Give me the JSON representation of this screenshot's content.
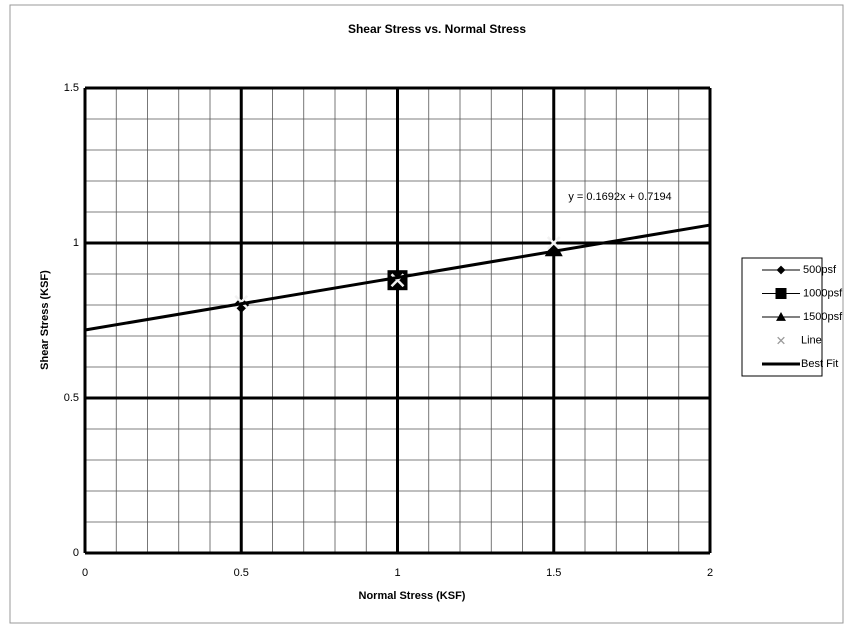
{
  "chart_data": {
    "type": "scatter",
    "title": "Shear Stress vs. Normal Stress",
    "xlabel": "Normal Stress (KSF)",
    "ylabel": "Shear Stress (KSF)",
    "xlim": [
      0,
      2
    ],
    "ylim": [
      0,
      1.5
    ],
    "xticks": [
      0,
      0.5,
      1,
      1.5,
      2
    ],
    "yticks": [
      0,
      0.5,
      1,
      1.5
    ],
    "minor_xticks": [
      0.1,
      0.2,
      0.3,
      0.4,
      0.6,
      0.7,
      0.8,
      0.9,
      1.1,
      1.2,
      1.3,
      1.4,
      1.6,
      1.7,
      1.8,
      1.9
    ],
    "minor_yticks": [
      0.1,
      0.2,
      0.3,
      0.4,
      0.6,
      0.7,
      0.8,
      0.9,
      1.1,
      1.2,
      1.3,
      1.4
    ],
    "grid": true,
    "legend": "right",
    "annotation": "y = 0.1692x + 0.7194",
    "series": [
      {
        "name": "500psf",
        "color": "#000000",
        "marker": "diamond",
        "x": [
          0.5
        ],
        "values": [
          0.8
        ]
      },
      {
        "name": "1000psf",
        "color": "#000000",
        "marker": "square",
        "x": [
          1
        ],
        "values": [
          0.88
        ]
      },
      {
        "name": "1500psf",
        "color": "#000000",
        "marker": "triangle",
        "x": [
          1.5
        ],
        "values": [
          0.98
        ]
      },
      {
        "name": "Line",
        "color": "#9a9a9a",
        "marker": "x",
        "x": [
          0.5,
          1,
          1.5
        ],
        "values": [
          0.81,
          0.88,
          1.0
        ]
      },
      {
        "name": "Best Fit",
        "color": "#000000",
        "marker": "line",
        "x": [
          0,
          2
        ],
        "values": [
          0.7194,
          1.0578
        ]
      }
    ]
  }
}
